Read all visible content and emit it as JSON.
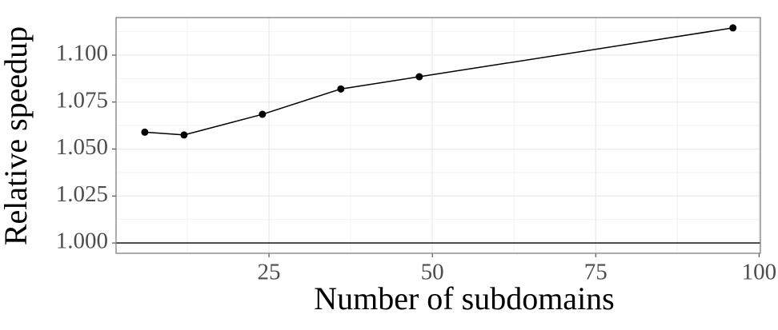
{
  "chart_data": {
    "type": "line",
    "xlabel": "Number of subdomains",
    "ylabel": "Relative speedup",
    "x": [
      6,
      12,
      24,
      36,
      48,
      96
    ],
    "series": [
      {
        "color": "#000000",
        "values": [
          1.059,
          1.0575,
          1.0685,
          1.082,
          1.0885,
          1.1145
        ]
      }
    ],
    "xlim": [
      1.6,
      100.2
    ],
    "ylim": [
      0.9945,
      1.12
    ],
    "xticks": [
      25,
      50,
      75,
      100
    ],
    "yticks": [
      {
        "value": 1.0,
        "label": "1.000"
      },
      {
        "value": 1.025,
        "label": "1.025"
      },
      {
        "value": 1.05,
        "label": "1.050"
      },
      {
        "value": 1.075,
        "label": "1.075"
      },
      {
        "value": 1.1,
        "label": "1.100"
      }
    ],
    "hline": 1.0,
    "grid": true
  }
}
